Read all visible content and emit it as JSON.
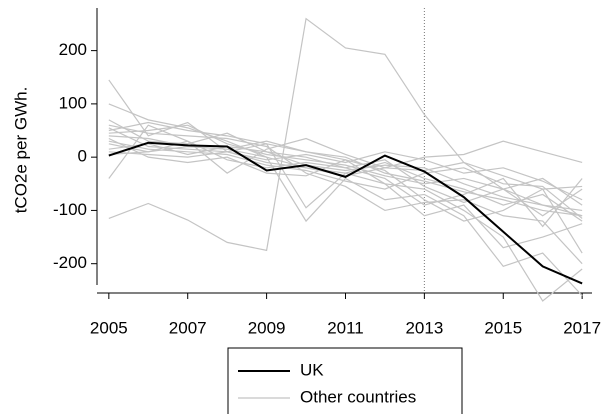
{
  "chart_data": {
    "type": "line",
    "y_label": "tCO2e per GWh.",
    "x": [
      2005,
      2006,
      2007,
      2008,
      2009,
      2010,
      2011,
      2012,
      2013,
      2014,
      2015,
      2016,
      2017
    ],
    "xlim": [
      2004.7,
      2017.25
    ],
    "xticks": [
      2005,
      2007,
      2009,
      2011,
      2013,
      2015,
      2017
    ],
    "ylim": [
      -240,
      280
    ],
    "yticks": [
      -200,
      -100,
      0,
      100,
      200
    ],
    "grid": false,
    "vline": 2013,
    "series": [
      {
        "name": "UK",
        "color": "#000000",
        "values": [
          3,
          27,
          22,
          20,
          -25,
          -15,
          -37,
          3,
          -27,
          -75,
          -140,
          -205,
          -237
        ]
      },
      {
        "name": "Other countries",
        "color": "#c4c4c4",
        "values": [
          [
            -115,
            -87,
            -118,
            -160,
            -175,
            260,
            205,
            193,
            80,
            -10,
            -60,
            -90,
            -110
          ],
          [
            145,
            40,
            65,
            10,
            25,
            -95,
            -30,
            -50,
            -60,
            -100,
            -150,
            -270,
            -210
          ],
          [
            100,
            70,
            55,
            30,
            0,
            -120,
            -40,
            -80,
            -70,
            -110,
            -205,
            -180,
            -260
          ],
          [
            -40,
            60,
            30,
            -30,
            15,
            35,
            5,
            -20,
            0,
            5,
            30,
            10,
            -10
          ],
          [
            55,
            20,
            15,
            10,
            -10,
            -20,
            -30,
            -10,
            -40,
            -60,
            -90,
            -70,
            -120
          ],
          [
            45,
            50,
            60,
            25,
            5,
            -5,
            -15,
            -35,
            -50,
            -40,
            -60,
            -110,
            -60
          ],
          [
            40,
            35,
            20,
            15,
            30,
            10,
            -5,
            -25,
            -80,
            -120,
            -100,
            -60,
            -180
          ],
          [
            30,
            15,
            10,
            5,
            -15,
            -25,
            -45,
            -60,
            -30,
            -20,
            -50,
            -55,
            -115
          ],
          [
            25,
            10,
            30,
            -5,
            -20,
            -10,
            -20,
            -40,
            -90,
            -70,
            -40,
            -130,
            -40
          ],
          [
            60,
            45,
            40,
            35,
            20,
            -30,
            -55,
            -100,
            -85,
            -80,
            -110,
            -120,
            -200
          ],
          [
            10,
            5,
            0,
            10,
            -5,
            5,
            -10,
            10,
            -5,
            -30,
            -20,
            -45,
            -80
          ],
          [
            15,
            25,
            5,
            20,
            10,
            -15,
            -25,
            -15,
            -20,
            -50,
            -75,
            -90,
            -100
          ],
          [
            35,
            0,
            -10,
            0,
            -30,
            -35,
            -5,
            -50,
            -110,
            -90,
            -170,
            -150,
            -125
          ],
          [
            50,
            65,
            50,
            40,
            25,
            10,
            0,
            -30,
            -45,
            -65,
            -80,
            -100,
            -110
          ],
          [
            5,
            10,
            20,
            15,
            0,
            -20,
            -35,
            -20,
            -25,
            -10,
            -35,
            -60,
            -55
          ],
          [
            70,
            30,
            25,
            45,
            10,
            0,
            -20,
            -5,
            -55,
            -85,
            -60,
            -40,
            -90
          ]
        ]
      }
    ]
  }
}
